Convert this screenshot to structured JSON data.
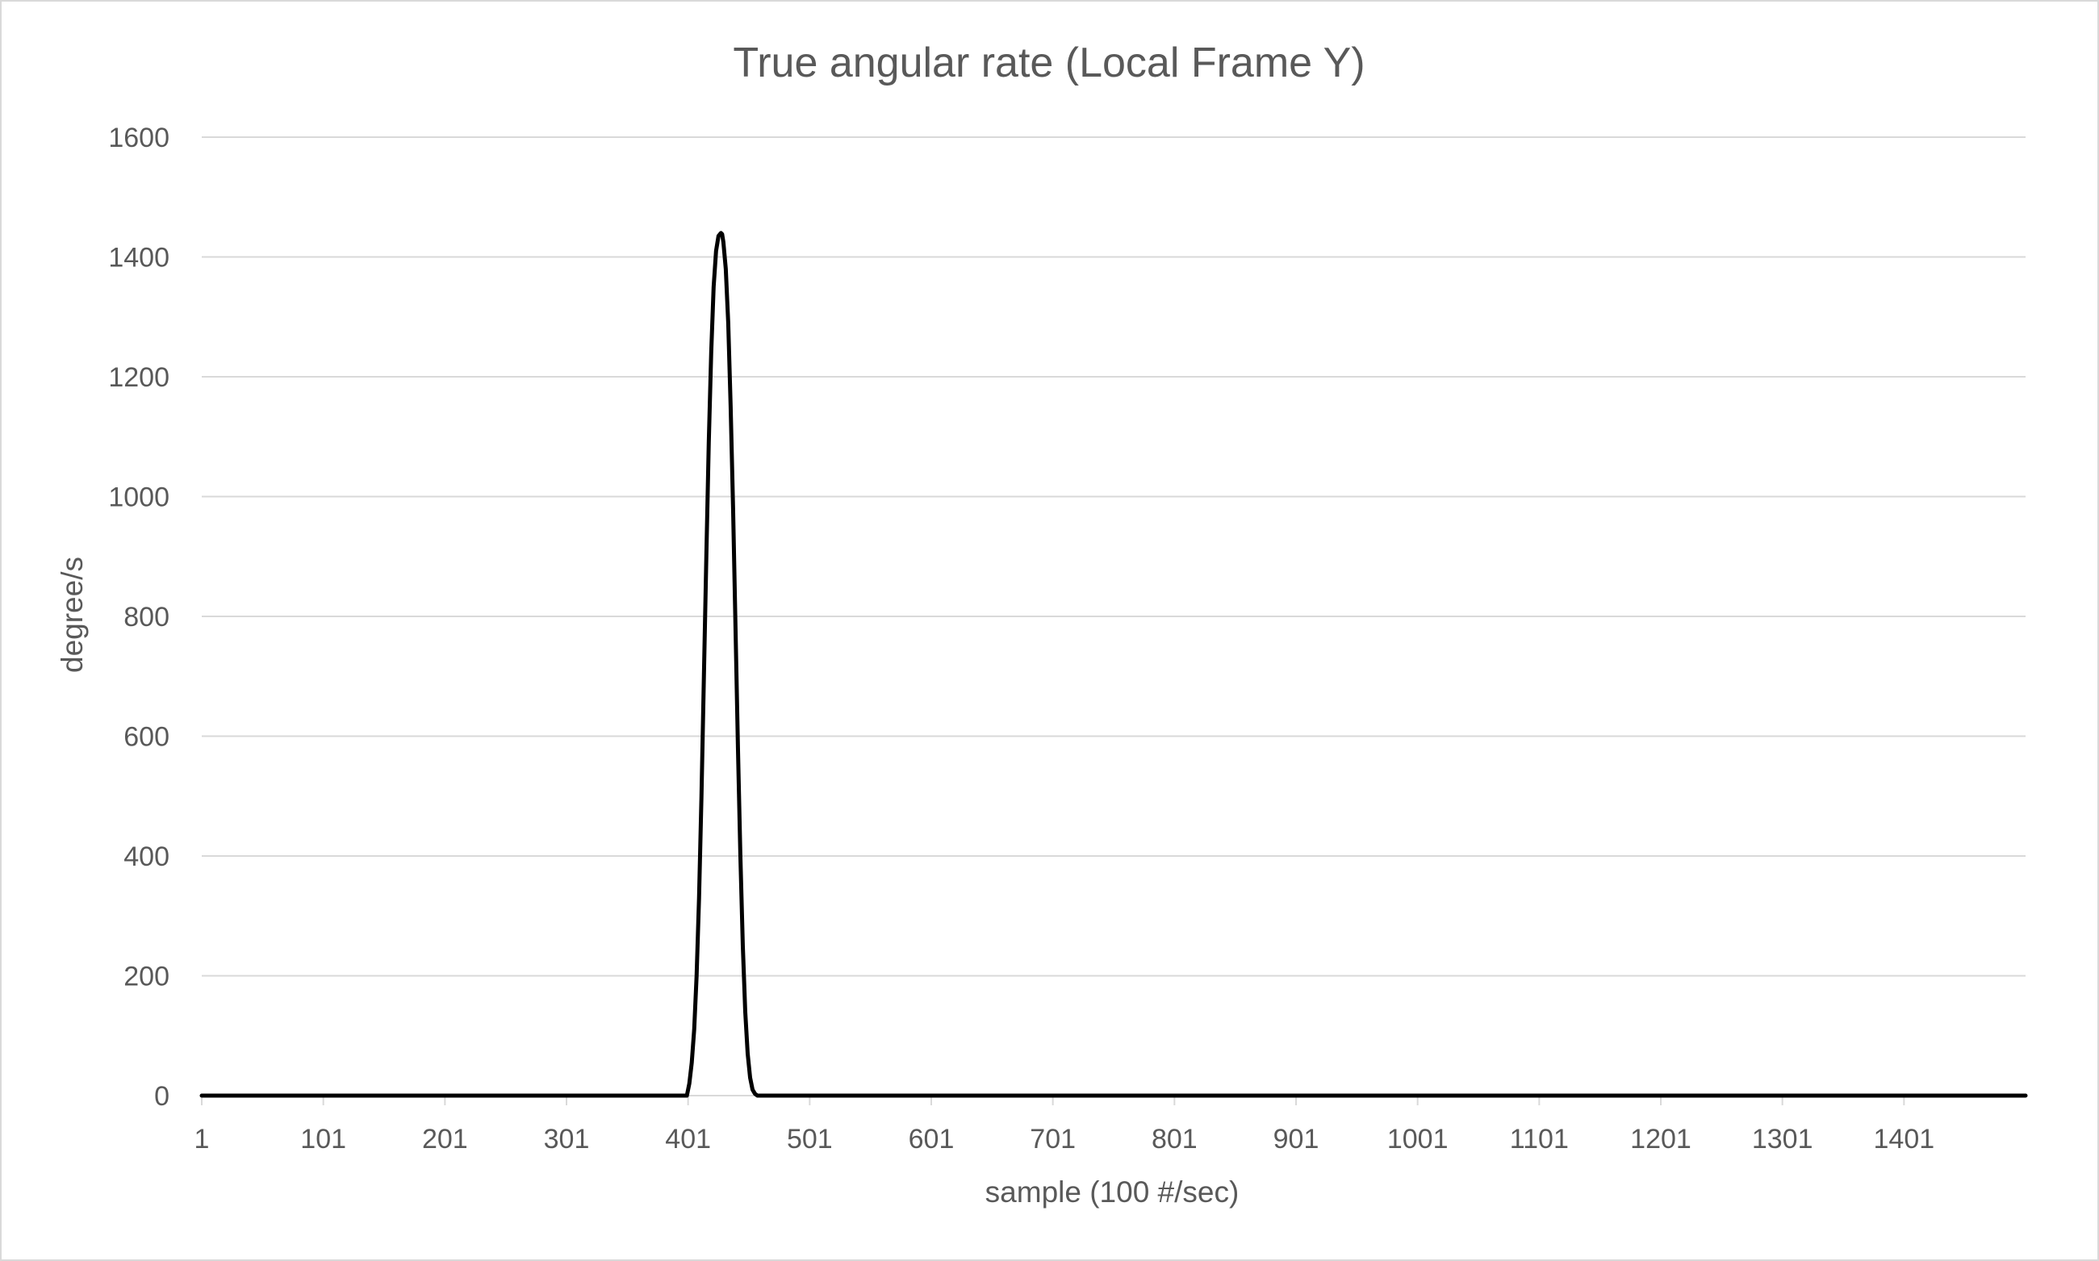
{
  "chart_data": {
    "type": "line",
    "title": "True angular rate (Local Frame Y)",
    "xlabel": "sample (100 #/sec)",
    "ylabel": "degree/s",
    "ylim": [
      0,
      1600
    ],
    "yticks": [
      "0",
      "200",
      "400",
      "600",
      "800",
      "1000",
      "1200",
      "1400",
      "1600"
    ],
    "xlim": [
      1,
      1501
    ],
    "xticks": [
      "1",
      "101",
      "201",
      "301",
      "401",
      "501",
      "601",
      "701",
      "801",
      "901",
      "1001",
      "1101",
      "1201",
      "1301",
      "1401"
    ],
    "grid": true,
    "legend": "none",
    "series": [
      {
        "color": "#000000",
        "x": [
          1,
          400,
          402,
          404,
          406,
          408,
          410,
          412,
          414,
          416,
          418,
          420,
          422,
          424,
          426,
          428,
          429,
          430,
          432,
          434,
          436,
          438,
          440,
          442,
          444,
          446,
          448,
          450,
          452,
          454,
          456,
          458,
          460,
          1501
        ],
        "y": [
          0,
          0,
          20,
          55,
          110,
          200,
          330,
          500,
          700,
          900,
          1090,
          1240,
          1350,
          1410,
          1435,
          1440,
          1438,
          1425,
          1380,
          1290,
          1150,
          980,
          780,
          580,
          400,
          250,
          140,
          70,
          30,
          10,
          3,
          0,
          0,
          0
        ]
      }
    ]
  }
}
